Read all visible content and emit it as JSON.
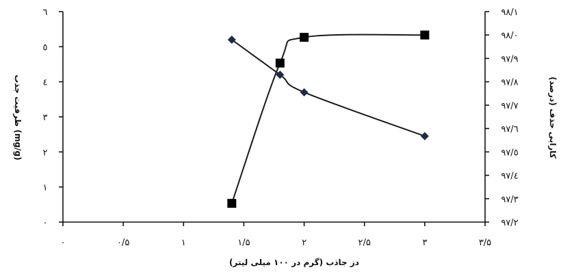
{
  "chart_data": {
    "type": "line",
    "title": "",
    "xlabel": "دز جاذب (گرم در ۱۰۰ میلی لیتر)",
    "ylabel_left": "ظرفیت جذب (mg/g)",
    "ylabel_right": "کارایی حذف (درصد)",
    "xlim": [
      0,
      3.5
    ],
    "ylim_left": [
      0,
      6
    ],
    "ylim_right": [
      97.2,
      98.1
    ],
    "grid": false,
    "legend": "none",
    "x_ticks": [
      {
        "value": 0,
        "label": "۰"
      },
      {
        "value": 0.5,
        "label": "۰/۵"
      },
      {
        "value": 1,
        "label": "۱"
      },
      {
        "value": 1.5,
        "label": "۱/۵"
      },
      {
        "value": 2,
        "label": "۲"
      },
      {
        "value": 2.5,
        "label": "۲/۵"
      },
      {
        "value": 3,
        "label": "۳"
      },
      {
        "value": 3.5,
        "label": "۳/۵"
      }
    ],
    "y_left_ticks": [
      {
        "value": 0,
        "label": "۰"
      },
      {
        "value": 1,
        "label": "۱"
      },
      {
        "value": 2,
        "label": "۲"
      },
      {
        "value": 3,
        "label": "۳"
      },
      {
        "value": 4,
        "label": "٤"
      },
      {
        "value": 5,
        "label": "٥"
      },
      {
        "value": 6,
        "label": "٦"
      }
    ],
    "y_right_ticks": [
      {
        "value": 97.2,
        "label": "۹۷/۲"
      },
      {
        "value": 97.3,
        "label": "۹۷/۳"
      },
      {
        "value": 97.4,
        "label": "۹۷/٤"
      },
      {
        "value": 97.5,
        "label": "۹۷/٥"
      },
      {
        "value": 97.6,
        "label": "۹۷/٦"
      },
      {
        "value": 97.7,
        "label": "۹۷/۷"
      },
      {
        "value": 97.8,
        "label": "۹۷/۸"
      },
      {
        "value": 97.9,
        "label": "۹۷/۹"
      },
      {
        "value": 98.0,
        "label": "۹۸/۰"
      },
      {
        "value": 98.1,
        "label": "۹۸/۱"
      }
    ],
    "series": [
      {
        "axis": "left",
        "marker": "diamond",
        "color": "#1f2a44",
        "x": [
          1.4,
          1.8,
          2.0,
          3.0
        ],
        "y": [
          5.2,
          4.2,
          3.7,
          2.45
        ]
      },
      {
        "axis": "right",
        "marker": "square",
        "color": "#000000",
        "x": [
          1.4,
          1.8,
          2.0,
          3.0
        ],
        "y": [
          97.28,
          97.88,
          97.99,
          98.0
        ]
      }
    ]
  }
}
